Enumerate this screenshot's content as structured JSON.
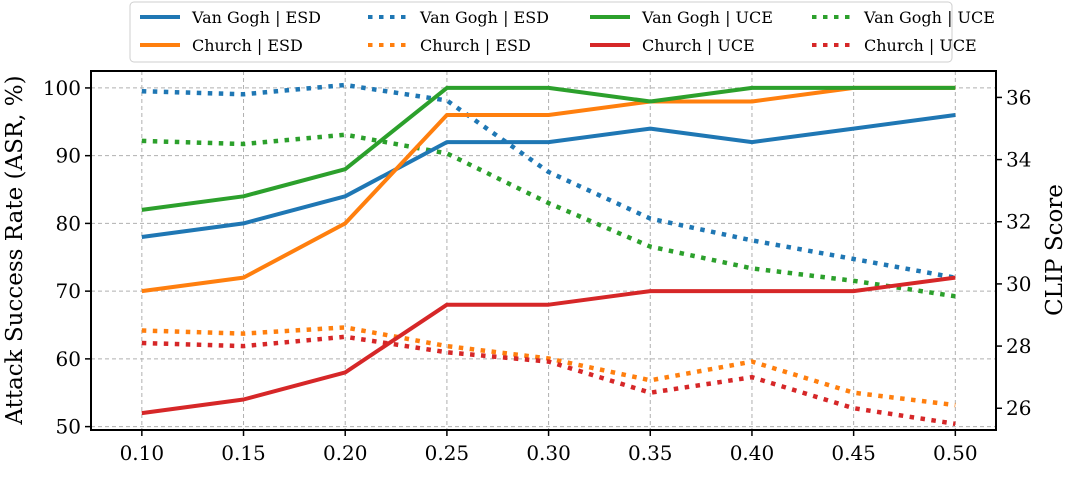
{
  "chart_data": {
    "type": "line",
    "x": [
      0.1,
      0.15,
      0.2,
      0.25,
      0.3,
      0.35,
      0.4,
      0.45,
      0.5
    ],
    "x_tick_labels": [
      "0.10",
      "0.15",
      "0.20",
      "0.25",
      "0.30",
      "0.35",
      "0.40",
      "0.45",
      "0.50"
    ],
    "xlim": [
      0.075,
      0.52
    ],
    "ylabel": "Attack Success Rate (ASR, %)",
    "ylim": [
      49.5,
      102.5
    ],
    "y_ticks": [
      50,
      60,
      70,
      80,
      90,
      100
    ],
    "y_tick_labels": [
      "50",
      "60",
      "70",
      "80",
      "90",
      "100"
    ],
    "y2label": "CLIP Score",
    "y2lim": [
      25.3,
      36.85
    ],
    "y2_ticks": [
      26,
      28,
      30,
      32,
      34,
      36
    ],
    "y2_tick_labels": [
      "26",
      "28",
      "30",
      "32",
      "34",
      "36"
    ],
    "grid": true,
    "legend_position": "top-center",
    "series": [
      {
        "name": "Van Gogh | ESD",
        "axis": "left",
        "style": "solid",
        "color": "#1f77b4",
        "values": [
          78,
          80,
          84,
          92,
          92,
          94,
          92,
          94,
          96
        ]
      },
      {
        "name": "Church | ESD",
        "axis": "left",
        "style": "solid",
        "color": "#ff7f0e",
        "values": [
          70,
          72,
          80,
          96,
          96,
          98,
          98,
          100,
          100
        ]
      },
      {
        "name": "Van Gogh | ESD",
        "axis": "right",
        "style": "dotted",
        "color": "#1f77b4",
        "values": [
          36.2,
          36.1,
          36.4,
          35.9,
          33.6,
          32.1,
          31.4,
          30.8,
          30.2
        ]
      },
      {
        "name": "Church | ESD",
        "axis": "right",
        "style": "dotted",
        "color": "#ff7f0e",
        "values": [
          28.5,
          28.4,
          28.6,
          28.0,
          27.6,
          26.9,
          27.5,
          26.5,
          26.1
        ]
      },
      {
        "name": "Van Gogh | UCE",
        "axis": "left",
        "style": "solid",
        "color": "#2ca02c",
        "values": [
          82,
          84,
          88,
          100,
          100,
          98,
          100,
          100,
          100
        ]
      },
      {
        "name": "Church | UCE",
        "axis": "left",
        "style": "solid",
        "color": "#d62728",
        "values": [
          52,
          54,
          58,
          68,
          68,
          70,
          70,
          70,
          72
        ]
      },
      {
        "name": "Van Gogh | UCE",
        "axis": "right",
        "style": "dotted",
        "color": "#2ca02c",
        "values": [
          34.6,
          34.5,
          34.8,
          34.2,
          32.6,
          31.2,
          30.5,
          30.1,
          29.6
        ]
      },
      {
        "name": "Church | UCE",
        "axis": "right",
        "style": "dotted",
        "color": "#d62728",
        "values": [
          28.1,
          28.0,
          28.3,
          27.8,
          27.5,
          26.5,
          27.0,
          26.0,
          25.5
        ]
      }
    ]
  }
}
